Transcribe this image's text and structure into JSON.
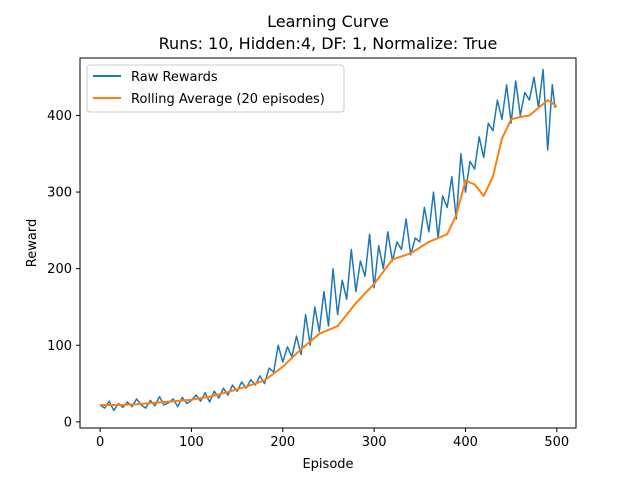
{
  "chart_data": {
    "type": "line",
    "title_line1": "Learning Curve",
    "title_line2": "Runs: 10, Hidden:4, DF: 1, Normalize: True",
    "xlabel": "Episode",
    "ylabel": "Reward",
    "xlim": [
      -22,
      521
    ],
    "ylim": [
      -8,
      475
    ],
    "xticks": [
      0,
      100,
      200,
      300,
      400,
      500
    ],
    "yticks": [
      0,
      100,
      200,
      300,
      400
    ],
    "grid": false,
    "legend_position": "upper-left",
    "series": [
      {
        "name": "Raw Rewards",
        "color": "#1f77b4",
        "x": [
          0,
          5,
          10,
          15,
          20,
          25,
          30,
          35,
          40,
          45,
          50,
          55,
          60,
          65,
          70,
          75,
          80,
          85,
          90,
          95,
          100,
          105,
          110,
          115,
          120,
          125,
          130,
          135,
          140,
          145,
          150,
          155,
          160,
          165,
          170,
          175,
          180,
          185,
          190,
          195,
          200,
          205,
          210,
          215,
          220,
          225,
          230,
          235,
          240,
          245,
          250,
          255,
          260,
          265,
          270,
          275,
          280,
          285,
          290,
          295,
          300,
          305,
          310,
          315,
          320,
          325,
          330,
          335,
          340,
          345,
          350,
          355,
          360,
          365,
          370,
          375,
          380,
          385,
          390,
          395,
          400,
          405,
          410,
          415,
          420,
          425,
          430,
          435,
          440,
          445,
          450,
          455,
          460,
          465,
          470,
          475,
          480,
          485,
          490,
          495,
          498
        ],
        "y": [
          22,
          18,
          27,
          15,
          24,
          19,
          26,
          20,
          30,
          22,
          18,
          28,
          21,
          33,
          22,
          25,
          30,
          20,
          32,
          24,
          28,
          35,
          27,
          38,
          26,
          40,
          31,
          44,
          35,
          48,
          40,
          52,
          44,
          55,
          48,
          60,
          50,
          70,
          65,
          100,
          78,
          98,
          85,
          112,
          88,
          140,
          100,
          150,
          118,
          170,
          125,
          200,
          140,
          185,
          160,
          225,
          170,
          210,
          190,
          245,
          175,
          230,
          200,
          248,
          210,
          235,
          225,
          265,
          218,
          240,
          235,
          280,
          248,
          300,
          240,
          295,
          280,
          320,
          265,
          350,
          300,
          340,
          330,
          372,
          345,
          390,
          380,
          420,
          395,
          440,
          390,
          445,
          400,
          430,
          420,
          450,
          410,
          460,
          355,
          440,
          410
        ]
      },
      {
        "name": "Rolling Average (20 episodes)",
        "color": "#ff7f0e",
        "x": [
          0,
          20,
          40,
          60,
          80,
          100,
          120,
          140,
          160,
          180,
          200,
          220,
          240,
          260,
          280,
          300,
          320,
          340,
          360,
          380,
          390,
          400,
          410,
          420,
          430,
          440,
          450,
          460,
          470,
          480,
          490,
          500
        ],
        "y": [
          22,
          22,
          23,
          25,
          27,
          29,
          33,
          39,
          46,
          54,
          72,
          95,
          115,
          125,
          155,
          180,
          212,
          220,
          235,
          245,
          270,
          315,
          310,
          295,
          320,
          370,
          395,
          398,
          400,
          410,
          420,
          412
        ]
      }
    ]
  }
}
